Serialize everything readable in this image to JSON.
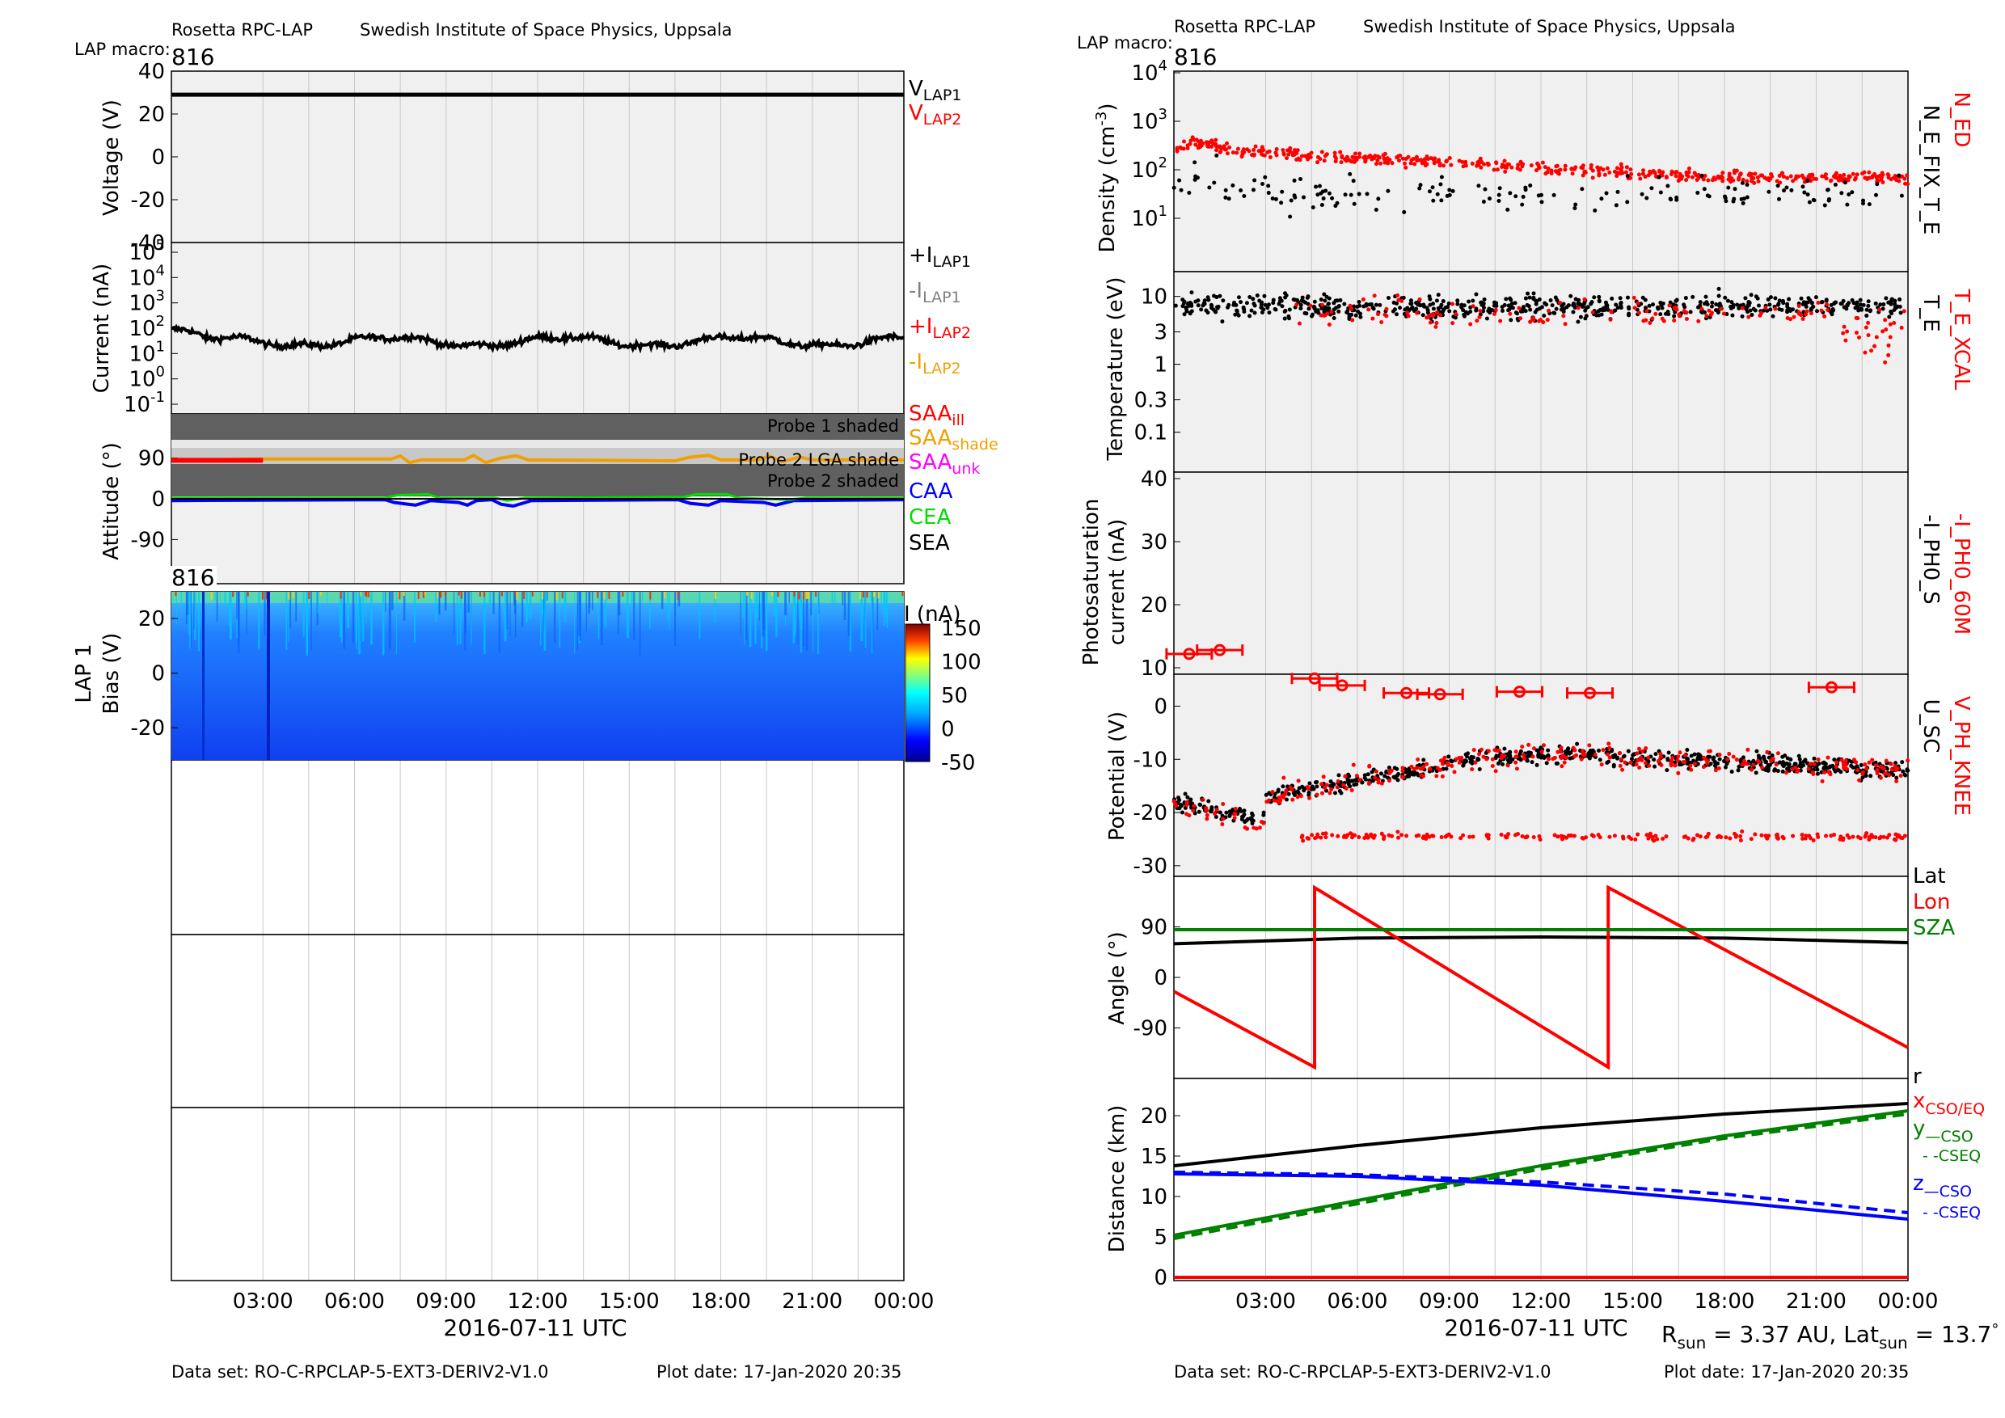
{
  "header": {
    "instrument": "Rosetta RPC-LAP",
    "institute": "Swedish Institute of Space Physics, Uppsala",
    "macro_label": "LAP macro:",
    "macro_value": "816"
  },
  "footer": {
    "dataset": "Data set: RO-C-RPCLAP-5-EXT3-DERIV2-V1.0",
    "plot_date": "Plot date: 17-Jan-2020 20:35",
    "xlabel": "2016-07-11 UTC",
    "x_ticks": [
      "03:00",
      "06:00",
      "09:00",
      "12:00",
      "15:00",
      "18:00",
      "21:00",
      "00:00"
    ],
    "rsun": "R",
    "rsun_sub": "sun",
    "rsun_val": " = 3.37 AU, Lat",
    "lat_sub": "sun",
    "lat_val": " = 13.7",
    "deg": "°"
  },
  "colors": {
    "black": "#000000",
    "red": "#ff0000",
    "grey": "#808080",
    "orange": "#f0a000",
    "magenta": "#ff00ff",
    "blue": "#0000ff",
    "green": "#00dd00",
    "darkgreen": "#008000",
    "panel_bg": "#f0f0f0",
    "shade_dark": "#606060",
    "shade_light": "#c8c8c8"
  },
  "labels": {
    "voltage": "Voltage (V)",
    "current": "Current (nA)",
    "attitude": "Attitude (°)",
    "lap1": "LAP 1",
    "bias": "Bias (V)",
    "cbar": "I (nA)",
    "spec_macro": "816",
    "density": "Density (cm",
    "density_exp": "-3",
    "density_close": ")",
    "temperature": "Temperature (eV)",
    "photo1": "Photosaturation",
    "photo2": "current (nA)",
    "potential": "Potential (V)",
    "angle": "Angle (°)",
    "distance": "Distance (km)",
    "probe1": "Probe 1 shaded",
    "probe2lga": "Probe 2 LGA shade",
    "probe2": "Probe 2 shaded",
    "v_lap1": "V",
    "v_lap1_sub": "LAP1",
    "v_lap2": "V",
    "v_lap2_sub": "LAP2",
    "i1p": "+I",
    "i1p_sub": "LAP1",
    "i1m": "-I",
    "i1m_sub": "LAP1",
    "i2p": "+I",
    "i2p_sub": "LAP2",
    "i2m": "-I",
    "i2m_sub": "LAP2",
    "saa": "SAA",
    "saa_ill": "ill",
    "saa_shade": "shade",
    "saa_unk": "unk",
    "caa": "CAA",
    "cea": "CEA",
    "sea": "SEA",
    "n_ed": "N_ED",
    "n_e_fix": "N_E_FIX_T_E",
    "t_e_xcal": "T_E_XCAL",
    "t_e": "T_E",
    "i_ph0_60m": "-I_PH0_60M",
    "i_ph0_s": "-I_PH0_S",
    "v_ph_knee": "V_PH_KNEE",
    "u_sc": "U_SC",
    "lat": "Lat",
    "lon": "Lon",
    "sza": "SZA",
    "r": "r",
    "x": "x",
    "x_sub": "CSO/EQ",
    "y": "y",
    "y_sub": "—CSO",
    "y_sub2": "- -CSEQ",
    "z": "z",
    "z_sub": "—CSO",
    "z_sub2": "- -CSEQ"
  },
  "chart_data": [
    {
      "name": "voltage",
      "type": "line",
      "ylim": [
        -40,
        40
      ],
      "yticks": [
        "40",
        "20",
        "0",
        "-20",
        "-40"
      ],
      "series": [
        {
          "name": "V_LAP1",
          "y": 29
        }
      ]
    },
    {
      "name": "current",
      "type": "scatter",
      "scale": "log",
      "yticks": [
        "10^5",
        "10^4",
        "10^3",
        "10^2",
        "10^1",
        "10^0",
        "10^-1"
      ],
      "typical": 30
    },
    {
      "name": "attitude",
      "type": "line",
      "ylim": [
        -150,
        150
      ],
      "yticks": [
        "90",
        "0",
        "-90"
      ]
    },
    {
      "name": "lap1_spectrogram",
      "type": "heatmap",
      "ylim": [
        -30,
        30
      ],
      "yticks": [
        "20",
        "0",
        "-20"
      ],
      "cbar_ticks": [
        "150",
        "100",
        "50",
        "0",
        "-50"
      ]
    },
    {
      "name": "density",
      "type": "scatter",
      "scale": "log",
      "yticks": [
        "10^4",
        "10^3",
        "10^2",
        "10^1"
      ]
    },
    {
      "name": "temperature",
      "type": "scatter",
      "scale": "log",
      "yticks": [
        "10",
        "3",
        "1",
        "0.3",
        "0.1"
      ]
    },
    {
      "name": "photosaturation",
      "type": "scatter",
      "ylim": [
        10,
        40
      ],
      "yticks": [
        "40",
        "30",
        "20",
        "10"
      ],
      "x_hours": [
        0.5,
        1.5,
        4.6,
        5.5,
        7.6,
        8.7,
        11.3,
        13.6,
        21.5
      ],
      "values": [
        12.2,
        12.8,
        8.3,
        7.2,
        6.0,
        5.8,
        6.2,
        6.0,
        6.9
      ]
    },
    {
      "name": "potential",
      "type": "scatter",
      "ylim": [
        -32,
        6
      ],
      "yticks": [
        "0",
        "-10",
        "-20",
        "-30"
      ]
    },
    {
      "name": "angle",
      "type": "line",
      "ylim": [
        -180,
        180
      ],
      "yticks": [
        "90",
        "0",
        "-90"
      ],
      "series": [
        {
          "name": "Lat",
          "x_hours": [
            0,
            6,
            12,
            18,
            24
          ],
          "values": [
            60,
            70,
            72,
            70,
            62
          ]
        },
        {
          "name": "Lon",
          "x_hours": [
            0,
            4.6,
            4.6,
            14.2,
            14.2,
            24
          ],
          "values": [
            -25,
            -160,
            160,
            -160,
            160,
            -125
          ]
        },
        {
          "name": "SZA",
          "x_hours": [
            0,
            24
          ],
          "values": [
            85,
            85
          ]
        }
      ]
    },
    {
      "name": "distance",
      "type": "line",
      "ylim": [
        0,
        22
      ],
      "yticks": [
        "20",
        "15",
        "10",
        "5",
        "0"
      ],
      "series": [
        {
          "name": "r",
          "x_hours": [
            0,
            6,
            12,
            18,
            24
          ],
          "values": [
            13.8,
            16.3,
            18.5,
            20.2,
            21.5
          ]
        },
        {
          "name": "x",
          "x_hours": [
            0,
            24
          ],
          "values": [
            0,
            0
          ]
        },
        {
          "name": "y CSO",
          "x_hours": [
            0,
            6,
            12,
            18,
            24
          ],
          "values": [
            5.2,
            9.5,
            13.8,
            17.5,
            20.6
          ]
        },
        {
          "name": "y CSEQ",
          "x_hours": [
            0,
            6,
            12,
            18,
            24
          ],
          "values": [
            4.8,
            9.1,
            13.4,
            17.2,
            20.2
          ]
        },
        {
          "name": "z CSO",
          "x_hours": [
            0,
            6,
            12,
            18,
            24
          ],
          "values": [
            12.8,
            12.5,
            11.4,
            9.4,
            7.2
          ]
        },
        {
          "name": "z CSEQ",
          "x_hours": [
            0,
            6,
            12,
            18,
            24
          ],
          "values": [
            13.0,
            12.7,
            11.8,
            10.3,
            8.0
          ]
        }
      ]
    }
  ]
}
